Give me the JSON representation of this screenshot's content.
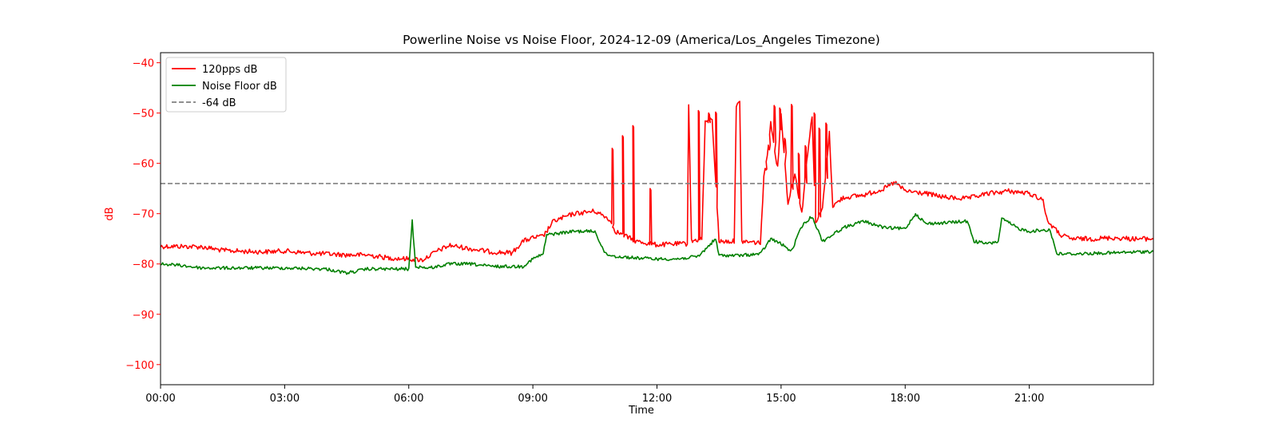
{
  "chart_data": {
    "type": "line",
    "title": "Powerline Noise vs Noise Floor, 2024-12-09 (America/Los_Angeles Timezone)",
    "xlabel": "Time",
    "ylabel": "dB",
    "ylabel_color": "#ff0000",
    "ytick_color": "#ff0000",
    "xlim": [
      "00:00",
      "24:00"
    ],
    "ylim": [
      -104,
      -38
    ],
    "x_ticks": [
      "00:00",
      "03:00",
      "06:00",
      "09:00",
      "12:00",
      "15:00",
      "18:00",
      "21:00"
    ],
    "y_ticks": [
      -40,
      -50,
      -60,
      -70,
      -80,
      -90,
      -100
    ],
    "grid": false,
    "legend_position": "upper-left",
    "series": [
      {
        "name": "120pps dB",
        "color": "#ff0000",
        "style": "solid",
        "points": [
          [
            "00:00",
            -76.5
          ],
          [
            "00:30",
            -76.5
          ],
          [
            "01:00",
            -76.6
          ],
          [
            "01:30",
            -77.3
          ],
          [
            "02:00",
            -77.5
          ],
          [
            "02:30",
            -77.6
          ],
          [
            "03:00",
            -77.4
          ],
          [
            "03:30",
            -77.8
          ],
          [
            "04:00",
            -78.0
          ],
          [
            "04:30",
            -78.2
          ],
          [
            "05:00",
            -78.2
          ],
          [
            "05:30",
            -78.8
          ],
          [
            "06:00",
            -79.0
          ],
          [
            "06:20",
            -79.2
          ],
          [
            "06:40",
            -77.5
          ],
          [
            "07:00",
            -76.3
          ],
          [
            "07:30",
            -77.0
          ],
          [
            "08:00",
            -77.6
          ],
          [
            "08:30",
            -77.8
          ],
          [
            "08:45",
            -75.5
          ],
          [
            "09:00",
            -74.8
          ],
          [
            "09:15",
            -74.5
          ],
          [
            "09:30",
            -71.5
          ],
          [
            "10:00",
            -70.0
          ],
          [
            "10:30",
            -69.5
          ],
          [
            "10:50",
            -71.0
          ],
          [
            "11:00",
            -73.5
          ],
          [
            "11:30",
            -75.5
          ],
          [
            "12:00",
            -76.2
          ],
          [
            "12:30",
            -76.0
          ],
          [
            "12:44",
            -76.0
          ],
          [
            "12:46",
            -48.0
          ],
          [
            "12:50",
            -75.5
          ],
          [
            "13:05",
            -75.0
          ],
          [
            "13:10",
            -52.0
          ],
          [
            "13:20",
            -51.0
          ],
          [
            "13:30",
            -75.5
          ],
          [
            "13:52",
            -75.5
          ],
          [
            "13:55",
            -48.5
          ],
          [
            "14:00",
            -48.0
          ],
          [
            "14:03",
            -75.5
          ],
          [
            "14:30",
            -75.8
          ],
          [
            "14:35",
            -63.0
          ],
          [
            "14:40",
            -58.0
          ],
          [
            "14:45",
            -52.0
          ],
          [
            "14:55",
            -61.0
          ],
          [
            "15:00",
            -50.0
          ],
          [
            "15:10",
            -68.0
          ],
          [
            "15:20",
            -62.0
          ],
          [
            "15:30",
            -70.0
          ],
          [
            "15:40",
            -56.0
          ],
          [
            "15:45",
            -50.5
          ],
          [
            "15:50",
            -72.0
          ],
          [
            "16:00",
            -69.0
          ],
          [
            "16:10",
            -54.0
          ],
          [
            "16:15",
            -68.5
          ],
          [
            "16:30",
            -66.8
          ],
          [
            "17:00",
            -66.3
          ],
          [
            "17:30",
            -65.0
          ],
          [
            "17:45",
            -63.8
          ],
          [
            "18:00",
            -65.5
          ],
          [
            "18:30",
            -66.0
          ],
          [
            "19:00",
            -66.8
          ],
          [
            "19:30",
            -67.0
          ],
          [
            "20:00",
            -66.0
          ],
          [
            "20:30",
            -65.5
          ],
          [
            "21:00",
            -66.0
          ],
          [
            "21:20",
            -67.2
          ],
          [
            "21:25",
            -71.0
          ],
          [
            "21:30",
            -72.0
          ],
          [
            "21:45",
            -74.2
          ],
          [
            "22:00",
            -75.0
          ],
          [
            "22:30",
            -75.0
          ],
          [
            "23:00",
            -74.8
          ],
          [
            "23:30",
            -75.0
          ],
          [
            "24:00",
            -75.0
          ]
        ],
        "spikes": [
          [
            "10:55",
            -57.0
          ],
          [
            "11:10",
            -54.5
          ],
          [
            "11:25",
            -52.5
          ],
          [
            "11:50",
            -65.0
          ],
          [
            "13:00",
            -49.5
          ],
          [
            "13:15",
            -50.0
          ],
          [
            "13:25",
            -49.8
          ],
          [
            "14:37",
            -61.0
          ],
          [
            "14:42",
            -57.0
          ],
          [
            "14:50",
            -48.5
          ],
          [
            "14:58",
            -49.0
          ],
          [
            "15:05",
            -55.0
          ],
          [
            "15:15",
            -48.3
          ],
          [
            "15:25",
            -58.0
          ],
          [
            "15:35",
            -56.5
          ],
          [
            "15:48",
            -50.0
          ],
          [
            "15:55",
            -53.0
          ],
          [
            "16:05",
            -52.0
          ]
        ]
      },
      {
        "name": "Noise Floor dB",
        "color": "#008000",
        "style": "solid",
        "points": [
          [
            "00:00",
            -80.0
          ],
          [
            "00:30",
            -80.3
          ],
          [
            "01:00",
            -80.8
          ],
          [
            "02:00",
            -80.8
          ],
          [
            "03:00",
            -80.8
          ],
          [
            "04:00",
            -81.0
          ],
          [
            "04:30",
            -81.8
          ],
          [
            "05:00",
            -81.0
          ],
          [
            "05:30",
            -81.0
          ],
          [
            "06:00",
            -81.0
          ],
          [
            "06:05",
            -71.5
          ],
          [
            "06:10",
            -80.5
          ],
          [
            "06:30",
            -80.8
          ],
          [
            "07:00",
            -80.0
          ],
          [
            "07:30",
            -80.0
          ],
          [
            "08:00",
            -80.5
          ],
          [
            "08:45",
            -80.5
          ],
          [
            "09:00",
            -79.0
          ],
          [
            "09:15",
            -78.0
          ],
          [
            "09:20",
            -74.2
          ],
          [
            "10:00",
            -73.5
          ],
          [
            "10:30",
            -73.5
          ],
          [
            "10:45",
            -78.0
          ],
          [
            "11:00",
            -78.5
          ],
          [
            "11:30",
            -78.8
          ],
          [
            "12:00",
            -79.0
          ],
          [
            "12:30",
            -79.0
          ],
          [
            "13:00",
            -78.5
          ],
          [
            "13:25",
            -75.0
          ],
          [
            "13:30",
            -78.3
          ],
          [
            "14:00",
            -78.3
          ],
          [
            "14:30",
            -78.0
          ],
          [
            "14:45",
            -75.0
          ],
          [
            "15:00",
            -76.0
          ],
          [
            "15:15",
            -77.5
          ],
          [
            "15:30",
            -72.5
          ],
          [
            "15:45",
            -70.5
          ],
          [
            "16:00",
            -75.5
          ],
          [
            "16:30",
            -72.8
          ],
          [
            "17:00",
            -71.5
          ],
          [
            "17:30",
            -72.8
          ],
          [
            "18:00",
            -73.0
          ],
          [
            "18:15",
            -70.0
          ],
          [
            "18:30",
            -72.0
          ],
          [
            "19:00",
            -71.8
          ],
          [
            "19:30",
            -71.5
          ],
          [
            "19:40",
            -75.5
          ],
          [
            "20:00",
            -76.0
          ],
          [
            "20:15",
            -75.5
          ],
          [
            "20:20",
            -71.0
          ],
          [
            "20:45",
            -73.0
          ],
          [
            "21:00",
            -73.5
          ],
          [
            "21:30",
            -73.2
          ],
          [
            "21:40",
            -78.0
          ],
          [
            "22:00",
            -78.0
          ],
          [
            "23:00",
            -77.8
          ],
          [
            "24:00",
            -77.5
          ]
        ]
      },
      {
        "name": "-64 dB",
        "color": "#808080",
        "style": "dashed",
        "points": [
          [
            "00:00",
            -64.0
          ],
          [
            "24:00",
            -64.0
          ]
        ]
      }
    ]
  }
}
